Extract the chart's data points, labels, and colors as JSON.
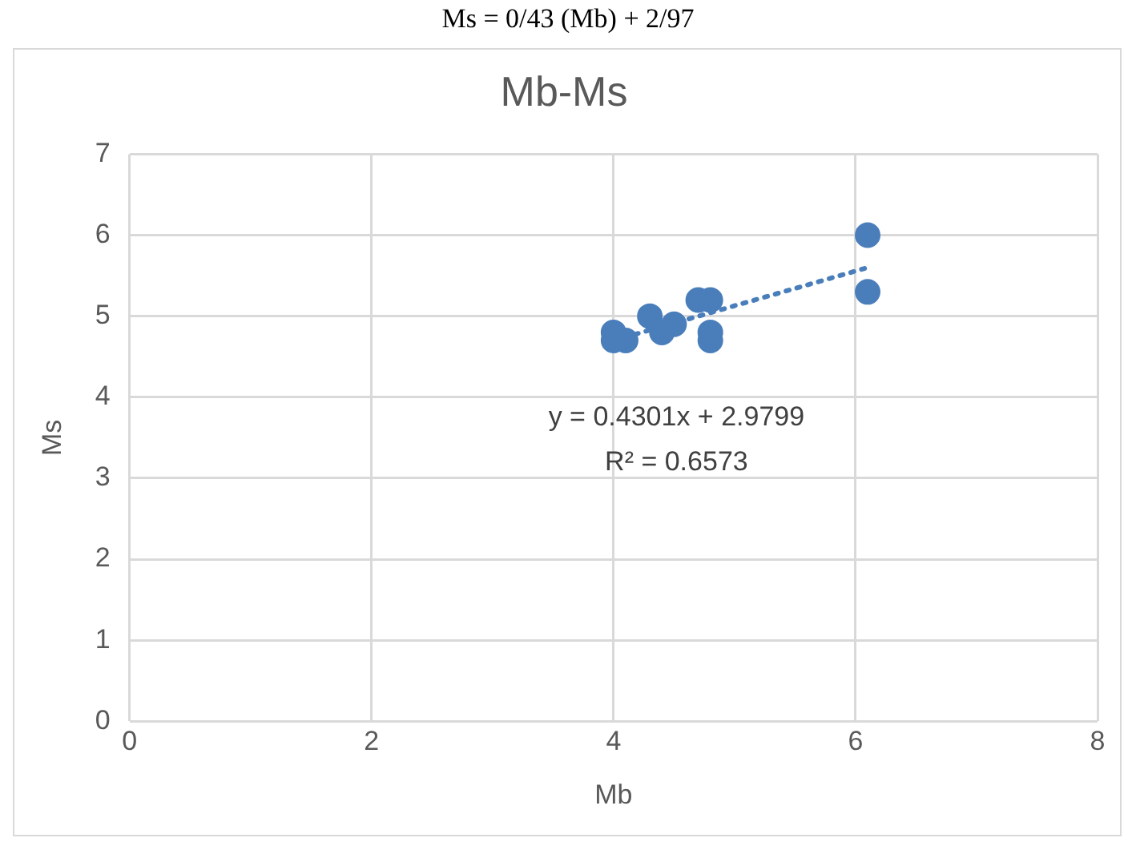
{
  "chart_data": {
    "type": "scatter",
    "title": "Mb-Ms",
    "xlabel": "Mb",
    "ylabel": "Ms",
    "annotations": [
      "Ms = 0/43 (Mb) + 2/97",
      "y = 0.4301x + 2.9799",
      "R² = 0.6573"
    ],
    "series": [
      {
        "color": "#4a7ebb",
        "x": [
          4.0,
          4.0,
          4.1,
          4.3,
          4.4,
          4.5,
          4.7,
          4.8,
          4.8,
          4.8,
          6.1,
          6.1
        ],
        "values": [
          4.7,
          4.8,
          4.7,
          5.0,
          4.8,
          4.9,
          5.2,
          5.2,
          4.8,
          4.7,
          6.0,
          5.3
        ],
        "marker": "circle"
      },
      {
        "type": "line",
        "color": "#4a7ebb",
        "x": [
          4.0,
          6.1
        ],
        "values": [
          4.7,
          5.6
        ],
        "line_style": "dotted",
        "marker": "none"
      }
    ],
    "xlim": [
      0,
      8
    ],
    "xticks": [
      0,
      2,
      4,
      6,
      8
    ],
    "ylim": [
      0,
      7
    ],
    "yticks": [
      0,
      1,
      2,
      3,
      4,
      5,
      6,
      7
    ],
    "grid": true,
    "legend": false
  }
}
